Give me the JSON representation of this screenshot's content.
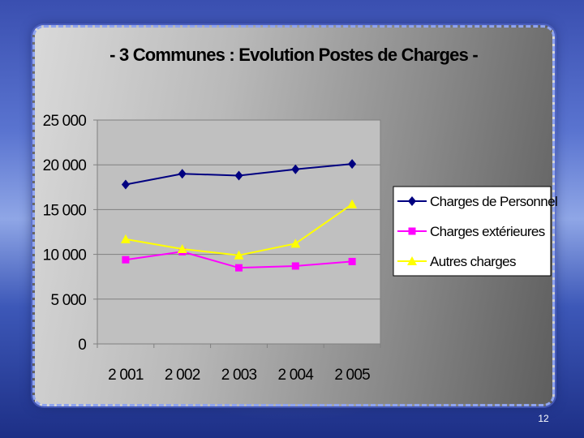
{
  "slide": {
    "page_number": "12"
  },
  "chart_data": {
    "type": "line",
    "title": "- 3 Communes : Evolution Postes de Charges -",
    "xlabel": "",
    "ylabel": "",
    "categories": [
      "2 001",
      "2 002",
      "2 003",
      "2 004",
      "2 005"
    ],
    "ylim": [
      0,
      25000
    ],
    "yticks": [
      0,
      5000,
      10000,
      15000,
      20000,
      25000
    ],
    "ytick_labels": [
      "0",
      "5 000",
      "10 000",
      "15 000",
      "20 000",
      "25 000"
    ],
    "grid": "horizontal",
    "legend_position": "right",
    "series": [
      {
        "name": "Charges de Personnel",
        "values": [
          17800,
          19000,
          18800,
          19500,
          20100
        ],
        "color": "#000080",
        "marker": "diamond"
      },
      {
        "name": "Charges extérieures",
        "values": [
          9400,
          10300,
          8500,
          8700,
          9200
        ],
        "color": "#ff00ff",
        "marker": "square"
      },
      {
        "name": "Autres charges",
        "values": [
          11700,
          10600,
          9900,
          11200,
          15600
        ],
        "color": "#ffff00",
        "marker": "triangle"
      }
    ]
  }
}
